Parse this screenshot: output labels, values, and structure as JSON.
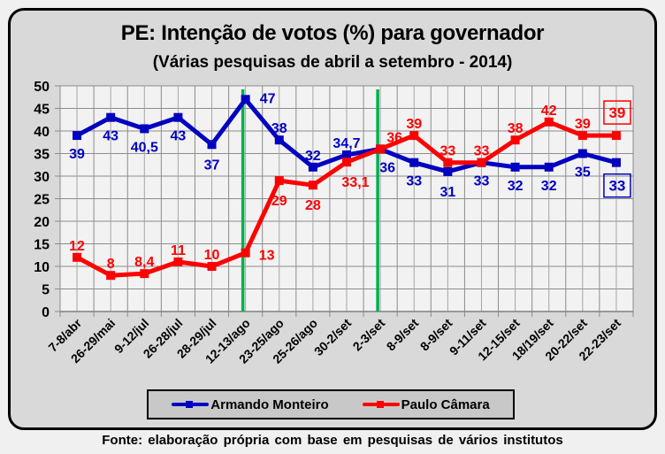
{
  "chart_data": {
    "type": "line",
    "title": "PE: Intenção de votos (%) para governador",
    "subtitle": "(Várias pesquisas de abril a setembro - 2014)",
    "xlabel": "",
    "ylabel": "",
    "ylim": [
      0,
      50
    ],
    "yticks": [
      0,
      5,
      10,
      15,
      20,
      25,
      30,
      35,
      40,
      45,
      50
    ],
    "grid": true,
    "legend_position": "bottom",
    "categories": [
      "7-8/abr",
      "26-29/mai",
      "9-12/jul",
      "26-28/jul",
      "28-29/jul",
      "12-13/ago",
      "23-25/ago",
      "25-26/ago",
      "30-2/set",
      "2-3/set",
      "8-9/set",
      "8-9/set",
      "9-11/set",
      "12-15/set",
      "18/19/set",
      "20-22/set",
      "22-23/set"
    ],
    "series": [
      {
        "name": "Armando Monteiro",
        "color": "#0000c0",
        "values": [
          39,
          43,
          40.5,
          43,
          37,
          47,
          38,
          32,
          34.7,
          36,
          33,
          31,
          33,
          32,
          32,
          35,
          33
        ],
        "labels": [
          "39",
          "43",
          "40,5",
          "43",
          "37",
          "47",
          "38",
          "32",
          "34,7",
          "36",
          "33",
          "31",
          "33",
          "32",
          "32",
          "35",
          "33"
        ]
      },
      {
        "name": "Paulo Câmara",
        "color": "#ff0000",
        "values": [
          12,
          8,
          8.4,
          11,
          10,
          13,
          29,
          28,
          33.1,
          36,
          39,
          33,
          33,
          38,
          42,
          39,
          39
        ],
        "labels": [
          "12",
          "8",
          "8,4",
          "11",
          "10",
          "13",
          "29",
          "28",
          "33,1",
          "36",
          "39",
          "33",
          "33",
          "38",
          "42",
          "39",
          "39"
        ]
      }
    ],
    "vertical_markers": [
      {
        "category": "12-13/ago",
        "color": "#00b050"
      },
      {
        "category": "2-3/set",
        "color": "#00b050"
      }
    ],
    "boxed_final_labels": [
      {
        "series": "Paulo Câmara",
        "text": "39"
      },
      {
        "series": "Armando Monteiro",
        "text": "33"
      }
    ],
    "source": "Fonte: elaboração própria com base em pesquisas  de vários institutos"
  }
}
